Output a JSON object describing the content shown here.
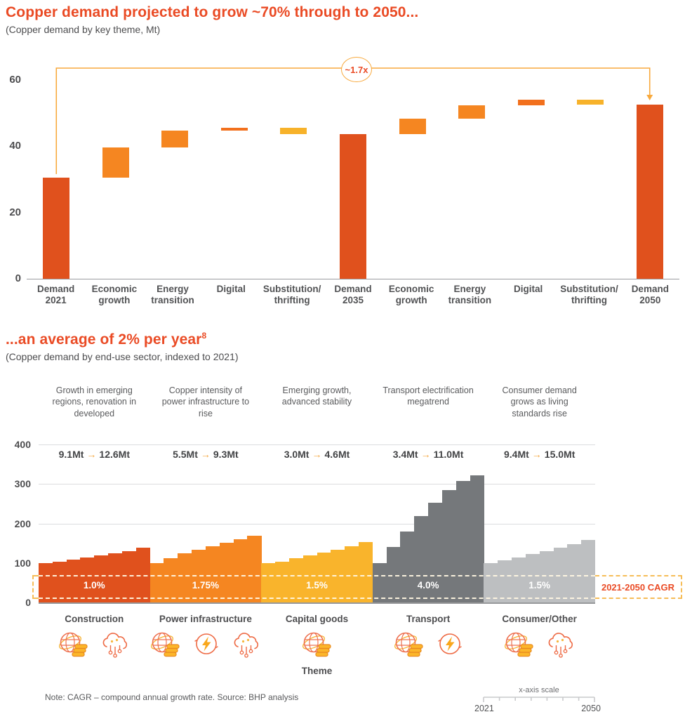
{
  "glyphs": {
    "arrow_right": "→"
  },
  "colors": {
    "accent": "#ea4b25",
    "bracket_line": "#f8a93d",
    "grid": "#dcdddf",
    "axis": "#97999b"
  },
  "note": {
    "text": "Note: CAGR – compound annual growth rate. Source: BHP analysis"
  },
  "scale_widget": {
    "label": "x-axis scale",
    "start_label": "2021",
    "end_label": "2050"
  },
  "chart_data": [
    {
      "type": "bar",
      "subtype": "waterfall",
      "title": "Copper demand projected to grow ~70% through to 2050...",
      "subtitle": "(Copper demand by key theme, Mt)",
      "ylabel": "Mt",
      "ylim": [
        0,
        65.4
      ],
      "yticks": [
        0,
        20,
        40,
        60
      ],
      "annotation": "~1.7x",
      "colors": {
        "total": "#e0511d",
        "increase": "#f58621",
        "digital": "#f2701d",
        "decrease": "#f7b22a"
      },
      "bars": [
        {
          "label": "Demand 2021",
          "role": "total",
          "start": 0,
          "end": 30.5
        },
        {
          "label": "Economic growth",
          "role": "increase",
          "start": 30.5,
          "end": 39.5
        },
        {
          "label": "Energy transition",
          "role": "increase",
          "start": 39.5,
          "end": 44.7
        },
        {
          "label": "Digital",
          "role": "digital",
          "start": 44.7,
          "end": 45.4
        },
        {
          "label": "Substitution/ thrifting",
          "role": "decrease",
          "start": 45.4,
          "end": 43.5
        },
        {
          "label": "Demand 2035",
          "role": "total",
          "start": 0,
          "end": 43.5
        },
        {
          "label": "Economic growth",
          "role": "increase",
          "start": 43.5,
          "end": 48.2
        },
        {
          "label": "Energy transition",
          "role": "increase",
          "start": 48.2,
          "end": 52.2
        },
        {
          "label": "Digital",
          "role": "digital",
          "start": 52.2,
          "end": 54.0
        },
        {
          "label": "Substitution/ thrifting",
          "role": "decrease",
          "start": 54.0,
          "end": 52.5
        },
        {
          "label": "Demand 2050",
          "role": "total",
          "start": 0,
          "end": 52.5
        }
      ]
    },
    {
      "type": "bar",
      "subtype": "indexed-stepped",
      "title": "...an average of 2% per year",
      "footnote_marker": "8",
      "subtitle": "(Copper demand by end-use sector, indexed to 2021)",
      "xlabel": "Theme",
      "ylim": [
        0,
        400
      ],
      "yticks": [
        0,
        100,
        200,
        300,
        400
      ],
      "x_range": [
        "2021",
        "2050"
      ],
      "cagr_label": "2021-2050 CAGR",
      "groups": [
        {
          "name": "Construction",
          "color": "#e0511d",
          "annotation": "Growth in emerging regions, renovation in developed",
          "from": "9.1Mt",
          "to": "12.6Mt",
          "cagr": "1.0%",
          "icons": [
            "globe-coins",
            "cloud-circuit"
          ],
          "values": [
            100,
            104,
            109,
            114,
            119,
            124,
            130,
            138
          ]
        },
        {
          "name": "Power infrastructure",
          "color": "#f58621",
          "annotation": "Copper intensity of power infrastructure to rise",
          "from": "5.5Mt",
          "to": "9.3Mt",
          "cagr": "1.75%",
          "icons": [
            "globe-coins",
            "lightning-circle",
            "cloud-circuit"
          ],
          "values": [
            100,
            112,
            124,
            133,
            142,
            151,
            160,
            169
          ]
        },
        {
          "name": "Capital goods",
          "color": "#f9b42c",
          "annotation": "Emerging growth, advanced stability",
          "from": "3.0Mt",
          "to": "4.6Mt",
          "cagr": "1.5%",
          "icons": [
            "globe-coins"
          ],
          "values": [
            100,
            104,
            112,
            119,
            126,
            134,
            143,
            153
          ]
        },
        {
          "name": "Transport",
          "color": "#75787b",
          "annotation": "Transport electrification megatrend",
          "from": "3.4Mt",
          "to": "11.0Mt",
          "cagr": "4.0%",
          "icons": [
            "globe-coins",
            "lightning-circle"
          ],
          "values": [
            100,
            140,
            180,
            218,
            252,
            284,
            307,
            322
          ]
        },
        {
          "name": "Consumer/Other",
          "color": "#bdbfc1",
          "annotation": "Consumer demand grows as living standards rise",
          "from": "9.4Mt",
          "to": "15.0Mt",
          "cagr": "1.5%",
          "icons": [
            "globe-coins",
            "cloud-circuit"
          ],
          "values": [
            100,
            107,
            114,
            122,
            130,
            139,
            148,
            158
          ]
        }
      ]
    }
  ]
}
